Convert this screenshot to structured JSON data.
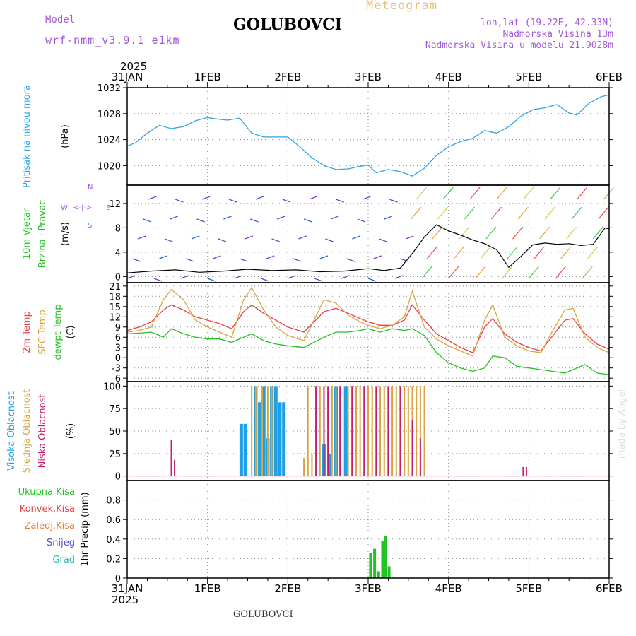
{
  "header": {
    "model_label": "Model",
    "model_name": "wrf-nmm_v3.9.1 e1km",
    "location": "GOLUBOVCI",
    "product": "Meteogram",
    "coords": "lon,lat (19.22E, 42.33N)",
    "altitude": "Nadmorska Visina 13m",
    "model_altitude": "Nadmorska Visina u modelu 21.9028m",
    "footer_location": "GOLUBOVCI",
    "credit": "made by Angel"
  },
  "time_axis": {
    "year_top": "2025",
    "year_bottom": "2025",
    "dates": [
      "31JAN",
      "1FEB",
      "2FEB",
      "3FEB",
      "4FEB",
      "5FEB",
      "6FEB"
    ]
  },
  "colors": {
    "pressure": "#2fa4e7",
    "temp2m": "#e8414a",
    "sfc_temp": "#d9a441",
    "dewpt": "#22c322",
    "high_cloud": "#1ea0e6",
    "mid_cloud": "#d9a441",
    "low_cloud": "#c4206e",
    "total_precip": "#22c322",
    "label_purple": "#a259d9",
    "wind_calm": "#7b2fd0",
    "wind_arrow_blue": "#2a5ad8"
  },
  "chart_data": [
    {
      "id": "pressure",
      "type": "line",
      "ylabel": [
        "Pritisak na nivou mora",
        "(hPa)"
      ],
      "ylim": [
        1017,
        1032
      ],
      "yticks": [
        1020,
        1024,
        1028,
        1032
      ],
      "grid": true,
      "x": [
        0,
        0.1,
        0.25,
        0.4,
        0.55,
        0.7,
        0.85,
        1.0,
        1.1,
        1.25,
        1.4,
        1.55,
        1.7,
        1.85,
        2.0,
        2.15,
        2.3,
        2.45,
        2.6,
        2.75,
        2.9,
        3.0,
        3.1,
        3.25,
        3.4,
        3.55,
        3.7,
        3.85,
        4.0,
        4.15,
        4.3,
        4.45,
        4.6,
        4.75,
        4.9,
        5.05,
        5.2,
        5.35,
        5.5,
        5.6,
        5.75,
        5.9,
        6.0
      ],
      "values": [
        1023.0,
        1023.5,
        1025.0,
        1026.2,
        1025.7,
        1026.0,
        1026.9,
        1027.4,
        1027.2,
        1027.0,
        1027.3,
        1025.0,
        1024.4,
        1024.4,
        1024.4,
        1022.9,
        1021.2,
        1020.0,
        1019.4,
        1019.5,
        1019.9,
        1020.1,
        1018.9,
        1019.4,
        1019.1,
        1018.4,
        1019.6,
        1021.6,
        1022.9,
        1023.7,
        1024.2,
        1025.4,
        1025.0,
        1026.0,
        1027.6,
        1028.6,
        1028.9,
        1029.4,
        1028.1,
        1027.8,
        1029.6,
        1030.6,
        1030.9
      ]
    },
    {
      "id": "wind",
      "type": "line",
      "ylabel": [
        "10m Vjetar",
        "Brzina i Pravac",
        "(m/s)"
      ],
      "compass": {
        "n": "N",
        "s": "S",
        "w": "W",
        "e": "E",
        "arrow": "<-|->"
      },
      "ylim": [
        -1,
        15
      ],
      "yticks": [
        0,
        4,
        8,
        12
      ],
      "grid": true,
      "x": [
        0,
        0.3,
        0.6,
        0.9,
        1.2,
        1.5,
        1.8,
        2.1,
        2.4,
        2.7,
        3.0,
        3.2,
        3.4,
        3.55,
        3.7,
        3.85,
        4.0,
        4.15,
        4.3,
        4.45,
        4.6,
        4.75,
        4.9,
        5.05,
        5.2,
        5.35,
        5.5,
        5.65,
        5.8,
        5.95,
        6.0
      ],
      "speed": [
        0.6,
        0.9,
        1.1,
        0.7,
        0.9,
        1.2,
        1.0,
        1.1,
        0.8,
        0.9,
        1.3,
        1.0,
        1.4,
        3.8,
        6.5,
        8.5,
        7.5,
        6.8,
        6.0,
        5.4,
        4.4,
        1.5,
        3.3,
        5.2,
        5.5,
        5.3,
        5.4,
        5.1,
        5.3,
        8.0,
        7.8
      ]
    },
    {
      "id": "temperature",
      "type": "line",
      "ylabel": [
        "2m Temp",
        "SFC Temp",
        "dewpt Temp",
        "(C)"
      ],
      "ylim": [
        -7,
        22
      ],
      "yticks": [
        -6,
        -3,
        0,
        3,
        6,
        9,
        12,
        15,
        18,
        21
      ],
      "grid": true,
      "x": [
        0,
        0.15,
        0.3,
        0.45,
        0.55,
        0.7,
        0.85,
        1.0,
        1.15,
        1.3,
        1.45,
        1.55,
        1.7,
        1.85,
        2.0,
        2.2,
        2.45,
        2.6,
        2.75,
        2.9,
        3.0,
        3.15,
        3.3,
        3.45,
        3.55,
        3.7,
        3.85,
        4.0,
        4.15,
        4.3,
        4.45,
        4.55,
        4.7,
        4.85,
        5.0,
        5.15,
        5.3,
        5.45,
        5.55,
        5.7,
        5.85,
        6.0
      ],
      "series": [
        {
          "name": "2m Temp",
          "values": [
            8.0,
            9.0,
            10.5,
            14.0,
            15.5,
            14.0,
            12.0,
            11.0,
            10.0,
            8.5,
            13.5,
            15.5,
            13.0,
            11.0,
            9.0,
            7.5,
            13.5,
            14.5,
            13.0,
            11.5,
            10.5,
            9.5,
            9.5,
            11.0,
            15.5,
            11.0,
            7.0,
            5.0,
            3.0,
            1.5,
            9.0,
            11.5,
            7.0,
            4.5,
            3.0,
            2.0,
            6.5,
            11.0,
            11.5,
            7.0,
            4.0,
            2.5
          ]
        },
        {
          "name": "SFC Temp",
          "values": [
            7.5,
            8.0,
            9.0,
            17.0,
            20.0,
            17.0,
            11.0,
            9.0,
            7.5,
            6.0,
            17.0,
            20.5,
            14.0,
            9.0,
            6.5,
            5.0,
            17.0,
            16.0,
            12.5,
            10.5,
            9.5,
            8.5,
            9.5,
            12.0,
            19.5,
            9.0,
            5.5,
            3.5,
            2.0,
            0.5,
            11.0,
            15.5,
            6.0,
            3.5,
            2.0,
            1.5,
            8.0,
            14.0,
            14.5,
            6.0,
            3.0,
            1.5
          ]
        },
        {
          "name": "dewpt Temp",
          "values": [
            7.0,
            7.2,
            7.5,
            6.0,
            8.5,
            7.0,
            6.0,
            5.5,
            5.5,
            4.5,
            6.0,
            7.0,
            5.0,
            4.0,
            3.5,
            3.0,
            6.0,
            7.5,
            7.5,
            8.0,
            8.5,
            7.5,
            8.5,
            8.0,
            8.5,
            6.5,
            1.5,
            -1.5,
            -3.0,
            -4.0,
            -3.0,
            0.5,
            0.0,
            -2.5,
            -3.0,
            -3.5,
            -4.0,
            -4.5,
            -3.5,
            -2.0,
            -4.5,
            -5.0
          ]
        }
      ]
    },
    {
      "id": "clouds",
      "type": "bar",
      "ylabel": [
        "Visoka Oblacnost",
        "Srednja Oblacnost",
        "Niska Oblacnost",
        "(%)"
      ],
      "ylim": [
        -5,
        105
      ],
      "yticks": [
        0,
        25,
        50,
        75,
        100
      ],
      "grid": true,
      "series": [
        {
          "name": "Visoka Oblacnost",
          "x": [
            1.42,
            1.47,
            1.6,
            1.65,
            1.7,
            1.75,
            1.8,
            1.85,
            1.9,
            1.95,
            2.45,
            2.52,
            2.6,
            2.72
          ],
          "values": [
            58,
            58,
            100,
            82,
            100,
            42,
            100,
            100,
            82,
            82,
            35,
            25,
            100,
            100
          ]
        },
        {
          "name": "Srednja Oblacnost",
          "x": [
            1.55,
            1.6,
            1.68,
            1.75,
            1.8,
            2.2,
            2.25,
            2.3,
            2.35,
            2.4,
            2.45,
            2.5,
            2.55,
            2.6,
            2.65,
            2.75,
            2.8,
            2.85,
            2.9,
            2.95,
            3.0,
            3.05,
            3.1,
            3.15,
            3.2,
            3.25,
            3.3,
            3.35,
            3.4,
            3.45,
            3.5,
            3.55,
            3.6,
            3.65,
            3.7
          ],
          "values": [
            100,
            100,
            100,
            100,
            100,
            20,
            100,
            25,
            100,
            100,
            100,
            100,
            100,
            100,
            100,
            100,
            100,
            100,
            100,
            100,
            100,
            100,
            100,
            100,
            100,
            100,
            100,
            100,
            100,
            100,
            100,
            100,
            100,
            100,
            100
          ]
        },
        {
          "name": "Niska Oblacnost",
          "x": [
            0.55,
            0.59,
            2.35,
            2.45,
            2.5,
            2.65,
            2.8,
            2.95,
            3.1,
            3.25,
            3.4,
            3.55,
            3.65,
            4.93,
            4.97
          ],
          "values": [
            40,
            18,
            100,
            100,
            100,
            100,
            100,
            100,
            100,
            100,
            100,
            62,
            42,
            10,
            10
          ]
        }
      ]
    },
    {
      "id": "precip",
      "type": "bar",
      "ylabel": [
        "1hr Precip (mm)"
      ],
      "legend": [
        "Ukupna Kisa",
        "Konvek.Kisa",
        "Zaledj.Kisa",
        "Snijeg",
        "Grad"
      ],
      "ylim": [
        0,
        1.0
      ],
      "yticks": [
        0,
        0.2,
        0.4,
        0.6,
        0.8
      ],
      "grid": true,
      "x": [
        3.03,
        3.08,
        3.13,
        3.18,
        3.22,
        3.26
      ],
      "values": [
        0.26,
        0.3,
        0.07,
        0.38,
        0.43,
        0.12
      ]
    }
  ]
}
